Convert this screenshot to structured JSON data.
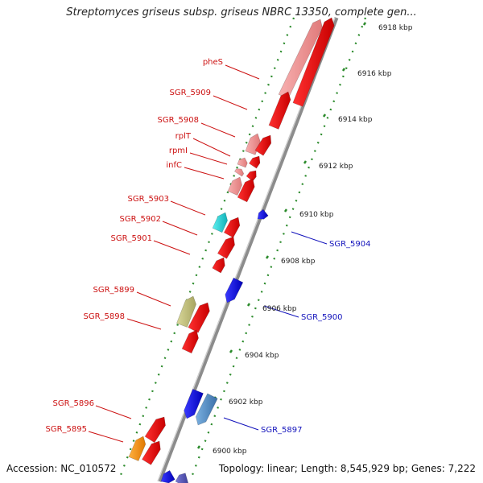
{
  "title": "Streptomyces griseus subsp. griseus NBRC 13350, complete gen...",
  "accession": "Accession: NC_010572",
  "stats": "Topology: linear; Length: 8,545,929 bp; Genes: 7,222",
  "colors": {
    "forward_gene": "#ee1111",
    "forward_light": "#f09a9a",
    "reverse_gene": "#1a1aee",
    "label_forward": "#cc1111",
    "label_reverse": "#1111bb",
    "track_dots": "#2a8a2a",
    "backbone": "#8c8c8c"
  },
  "kbp_marks": [
    {
      "text": "6918 kbp",
      "kbp": 6918
    },
    {
      "text": "6916 kbp",
      "kbp": 6916
    },
    {
      "text": "6914 kbp",
      "kbp": 6914
    },
    {
      "text": "6912 kbp",
      "kbp": 6912
    },
    {
      "text": "6910 kbp",
      "kbp": 6910
    },
    {
      "text": "6908 kbp",
      "kbp": 6908
    },
    {
      "text": "6906 kbp",
      "kbp": 6906
    },
    {
      "text": "6904 kbp",
      "kbp": 6904
    },
    {
      "text": "6902 kbp",
      "kbp": 6902
    },
    {
      "text": "6900 kbp",
      "kbp": 6900
    }
  ],
  "gene_labels_forward": [
    {
      "text": "pheS"
    },
    {
      "text": "SGR_5909"
    },
    {
      "text": "SGR_5908"
    },
    {
      "text": "rplT"
    },
    {
      "text": "rpmI"
    },
    {
      "text": "infC"
    },
    {
      "text": "SGR_5903"
    },
    {
      "text": "SGR_5902"
    },
    {
      "text": "SGR_5901"
    },
    {
      "text": "SGR_5899"
    },
    {
      "text": "SGR_5898"
    },
    {
      "text": "SGR_5896"
    },
    {
      "text": "SGR_5895"
    }
  ],
  "gene_labels_reverse": [
    {
      "text": "SGR_5904"
    },
    {
      "text": "SGR_5900"
    },
    {
      "text": "SGR_5897"
    }
  ]
}
